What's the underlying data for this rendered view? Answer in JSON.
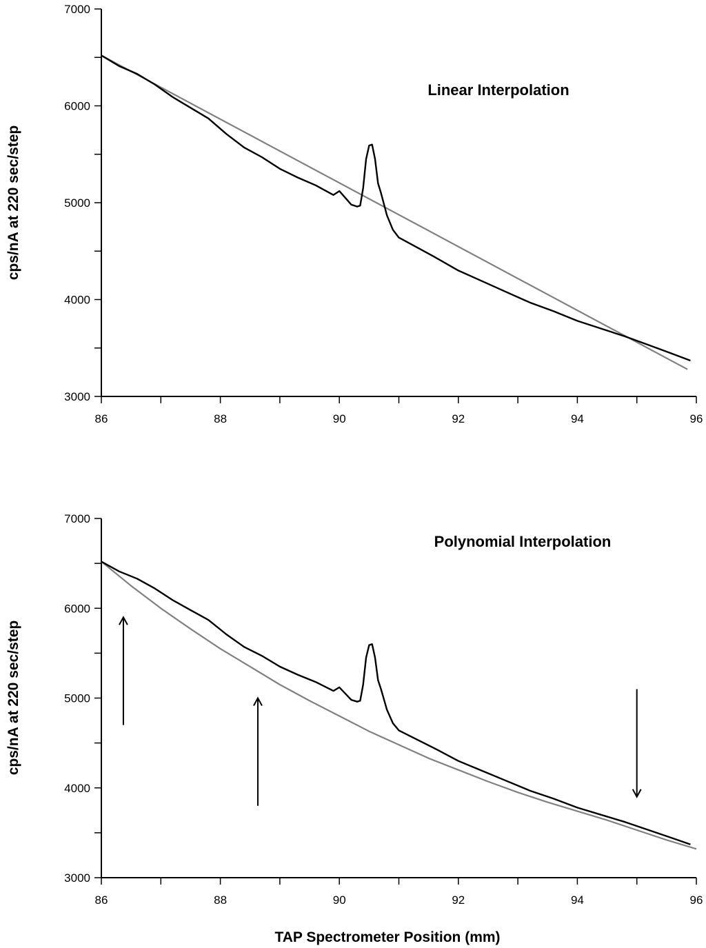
{
  "chart_data": [
    {
      "type": "line",
      "title": "Linear Interpolation",
      "xlabel": "",
      "ylabel": "cps/nA at 220 sec/step",
      "xlim": [
        86,
        96
      ],
      "ylim": [
        3000,
        7000
      ],
      "x_ticks": [
        "86",
        "88",
        "90",
        "92",
        "94",
        "96"
      ],
      "y_ticks": [
        "3000",
        "4000",
        "5000",
        "6000",
        "7000"
      ],
      "grid": false,
      "series": [
        {
          "role": "measured-scan",
          "color": "#000000",
          "points": [
            [
              86.0,
              6520
            ],
            [
              86.3,
              6410
            ],
            [
              86.6,
              6330
            ],
            [
              86.9,
              6220
            ],
            [
              87.2,
              6090
            ],
            [
              87.5,
              5980
            ],
            [
              87.8,
              5870
            ],
            [
              88.1,
              5710
            ],
            [
              88.4,
              5570
            ],
            [
              88.7,
              5470
            ],
            [
              89.0,
              5350
            ],
            [
              89.3,
              5260
            ],
            [
              89.6,
              5180
            ],
            [
              89.9,
              5080
            ],
            [
              90.0,
              5120
            ],
            [
              90.2,
              4980
            ],
            [
              90.3,
              4960
            ],
            [
              90.35,
              4970
            ],
            [
              90.4,
              5150
            ],
            [
              90.45,
              5450
            ],
            [
              90.5,
              5590
            ],
            [
              90.55,
              5600
            ],
            [
              90.6,
              5450
            ],
            [
              90.65,
              5200
            ],
            [
              90.7,
              5100
            ],
            [
              90.8,
              4870
            ],
            [
              90.9,
              4720
            ],
            [
              91.0,
              4640
            ],
            [
              91.3,
              4540
            ],
            [
              91.6,
              4440
            ],
            [
              92.0,
              4300
            ],
            [
              92.4,
              4190
            ],
            [
              92.8,
              4080
            ],
            [
              93.2,
              3970
            ],
            [
              93.6,
              3880
            ],
            [
              94.0,
              3780
            ],
            [
              94.4,
              3700
            ],
            [
              94.8,
              3620
            ],
            [
              95.2,
              3530
            ],
            [
              95.6,
              3440
            ],
            [
              95.9,
              3370
            ]
          ]
        },
        {
          "role": "linear-background",
          "color": "#808080",
          "points": [
            [
              86.0,
              6520
            ],
            [
              95.85,
              3280
            ]
          ]
        }
      ]
    },
    {
      "type": "line",
      "title": "Polynomial Interpolation",
      "xlabel": "TAP Spectrometer Position (mm)",
      "ylabel": "cps/nA at 220 sec/step",
      "xlim": [
        86,
        96
      ],
      "ylim": [
        3000,
        7000
      ],
      "x_ticks": [
        "86",
        "88",
        "90",
        "92",
        "94",
        "96"
      ],
      "y_ticks": [
        "3000",
        "4000",
        "5000",
        "6000",
        "7000"
      ],
      "grid": false,
      "series": [
        {
          "role": "measured-scan",
          "color": "#000000",
          "points": [
            [
              86.0,
              6520
            ],
            [
              86.3,
              6410
            ],
            [
              86.6,
              6330
            ],
            [
              86.9,
              6220
            ],
            [
              87.2,
              6090
            ],
            [
              87.5,
              5980
            ],
            [
              87.8,
              5870
            ],
            [
              88.1,
              5710
            ],
            [
              88.4,
              5570
            ],
            [
              88.7,
              5470
            ],
            [
              89.0,
              5350
            ],
            [
              89.3,
              5260
            ],
            [
              89.6,
              5180
            ],
            [
              89.9,
              5080
            ],
            [
              90.0,
              5120
            ],
            [
              90.2,
              4980
            ],
            [
              90.3,
              4960
            ],
            [
              90.35,
              4970
            ],
            [
              90.4,
              5150
            ],
            [
              90.45,
              5450
            ],
            [
              90.5,
              5590
            ],
            [
              90.55,
              5600
            ],
            [
              90.6,
              5450
            ],
            [
              90.65,
              5200
            ],
            [
              90.7,
              5100
            ],
            [
              90.8,
              4870
            ],
            [
              90.9,
              4720
            ],
            [
              91.0,
              4640
            ],
            [
              91.3,
              4540
            ],
            [
              91.6,
              4440
            ],
            [
              92.0,
              4300
            ],
            [
              92.4,
              4190
            ],
            [
              92.8,
              4080
            ],
            [
              93.2,
              3970
            ],
            [
              93.6,
              3880
            ],
            [
              94.0,
              3780
            ],
            [
              94.4,
              3700
            ],
            [
              94.8,
              3620
            ],
            [
              95.2,
              3530
            ],
            [
              95.6,
              3440
            ],
            [
              95.9,
              3370
            ]
          ]
        },
        {
          "role": "polynomial-background",
          "color": "#808080",
          "points": [
            [
              86.0,
              6520
            ],
            [
              86.5,
              6250
            ],
            [
              87.0,
              6000
            ],
            [
              87.5,
              5770
            ],
            [
              88.0,
              5550
            ],
            [
              88.5,
              5350
            ],
            [
              89.0,
              5150
            ],
            [
              89.5,
              4970
            ],
            [
              90.0,
              4800
            ],
            [
              90.5,
              4630
            ],
            [
              91.0,
              4480
            ],
            [
              91.5,
              4330
            ],
            [
              92.0,
              4200
            ],
            [
              92.5,
              4070
            ],
            [
              93.0,
              3950
            ],
            [
              93.5,
              3840
            ],
            [
              94.0,
              3740
            ],
            [
              94.5,
              3640
            ],
            [
              95.0,
              3530
            ],
            [
              95.5,
              3420
            ],
            [
              96.0,
              3320
            ]
          ]
        }
      ],
      "annotations": [
        {
          "type": "arrow",
          "direction": "up",
          "x": 86.37,
          "y_from": 4700,
          "y_to": 5900
        },
        {
          "type": "arrow",
          "direction": "up",
          "x": 88.63,
          "y_from": 3800,
          "y_to": 5000
        },
        {
          "type": "arrow",
          "direction": "down",
          "x": 95.0,
          "y_from": 5100,
          "y_to": 3900
        }
      ]
    }
  ]
}
